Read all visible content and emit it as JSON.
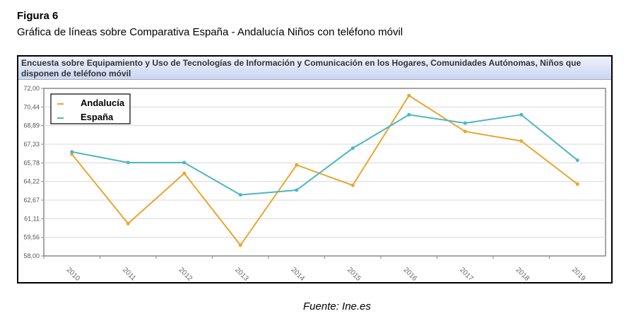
{
  "figure_label": "Figura 6",
  "figure_title": "Gráfica de líneas sobre Comparativa España - Andalucía Niños con teléfono móvil",
  "source": "Fuente: Ine.es",
  "chart_data": {
    "type": "line",
    "title": "Encuesta sobre Equipamiento y Uso de Tecnologías de Información y Comunicación en los Hogares, Comunidades Autónomas, Niños que disponen de teléfono móvil",
    "categories": [
      "2010",
      "2011",
      "2012",
      "2013",
      "2014",
      "2015",
      "2016",
      "2017",
      "2018",
      "2019"
    ],
    "yticks": [
      "72,00",
      "70,44",
      "68,89",
      "67,33",
      "65,78",
      "64,22",
      "62,67",
      "61,11",
      "59,56",
      "58,00"
    ],
    "ylim": [
      58,
      72
    ],
    "grid": true,
    "legend_position": "top-left",
    "series": [
      {
        "name": "Andalucía",
        "color": "#e8a631",
        "values": [
          66.5,
          60.7,
          64.9,
          58.9,
          65.6,
          63.9,
          71.4,
          68.4,
          67.6,
          64.0
        ]
      },
      {
        "name": "España",
        "color": "#4db6c4",
        "values": [
          66.7,
          65.8,
          65.8,
          63.1,
          63.5,
          67.0,
          69.8,
          69.1,
          69.8,
          66.0
        ]
      }
    ]
  }
}
